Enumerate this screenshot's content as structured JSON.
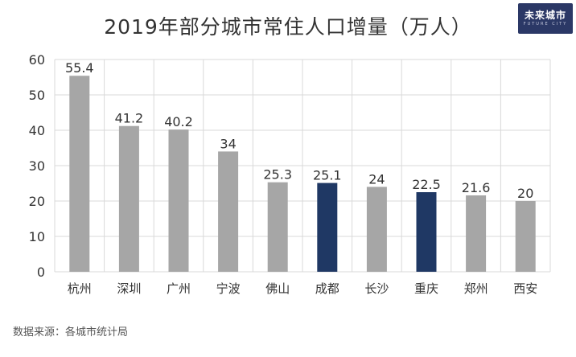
{
  "logo": {
    "text": "未来城市",
    "subtext": "FUTURE CITY"
  },
  "source": "数据来源：各城市统计局",
  "chart_data": {
    "type": "bar",
    "title": "2019年部分城市常住人口增量（万人）",
    "categories": [
      "杭州",
      "深圳",
      "广州",
      "宁波",
      "佛山",
      "成都",
      "长沙",
      "重庆",
      "郑州",
      "西安"
    ],
    "values": [
      55.4,
      41.2,
      40.2,
      34,
      25.3,
      25.1,
      24,
      22.5,
      21.6,
      20
    ],
    "value_labels": [
      "55.4",
      "41.2",
      "40.2",
      "34",
      "25.3",
      "25.1",
      "24",
      "22.5",
      "21.6",
      "20"
    ],
    "highlight": [
      false,
      false,
      false,
      false,
      false,
      true,
      false,
      true,
      false,
      false
    ],
    "ylim": [
      0,
      60
    ],
    "yticks": [
      0,
      10,
      20,
      30,
      40,
      50,
      60
    ],
    "grid": true,
    "colors": {
      "default": "#a6a6a6",
      "highlight": "#1f3864",
      "grid": "#d9d9d9",
      "text": "#333333"
    }
  }
}
